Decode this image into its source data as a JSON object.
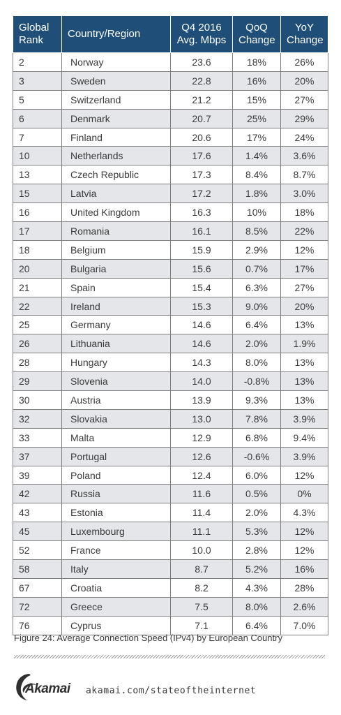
{
  "table": {
    "headers": {
      "rank": "Global Rank",
      "country": "Country/Region",
      "speed": "Q4 2016 Avg. Mbps",
      "qoq": "QoQ Change",
      "yoy": "YoY Change"
    },
    "rows": [
      {
        "rank": "2",
        "country": "Norway",
        "speed": "23.6",
        "qoq": "18%",
        "yoy": "26%"
      },
      {
        "rank": "3",
        "country": "Sweden",
        "speed": "22.8",
        "qoq": "16%",
        "yoy": "20%"
      },
      {
        "rank": "5",
        "country": "Switzerland",
        "speed": "21.2",
        "qoq": "15%",
        "yoy": "27%"
      },
      {
        "rank": "6",
        "country": "Denmark",
        "speed": "20.7",
        "qoq": "25%",
        "yoy": "29%"
      },
      {
        "rank": "7",
        "country": "Finland",
        "speed": "20.6",
        "qoq": "17%",
        "yoy": "24%"
      },
      {
        "rank": "10",
        "country": "Netherlands",
        "speed": "17.6",
        "qoq": "1.4%",
        "yoy": "3.6%"
      },
      {
        "rank": "13",
        "country": "Czech Republic",
        "speed": "17.3",
        "qoq": "8.4%",
        "yoy": "8.7%"
      },
      {
        "rank": "15",
        "country": "Latvia",
        "speed": "17.2",
        "qoq": "1.8%",
        "yoy": "3.0%"
      },
      {
        "rank": "16",
        "country": "United Kingdom",
        "speed": "16.3",
        "qoq": "10%",
        "yoy": "18%"
      },
      {
        "rank": "17",
        "country": "Romania",
        "speed": "16.1",
        "qoq": "8.5%",
        "yoy": "22%"
      },
      {
        "rank": "18",
        "country": "Belgium",
        "speed": "15.9",
        "qoq": "2.9%",
        "yoy": "12%"
      },
      {
        "rank": "20",
        "country": "Bulgaria",
        "speed": "15.6",
        "qoq": "0.7%",
        "yoy": "17%"
      },
      {
        "rank": "21",
        "country": "Spain",
        "speed": "15.4",
        "qoq": "6.3%",
        "yoy": "27%"
      },
      {
        "rank": "22",
        "country": "Ireland",
        "speed": "15.3",
        "qoq": "9.0%",
        "yoy": "20%"
      },
      {
        "rank": "25",
        "country": "Germany",
        "speed": "14.6",
        "qoq": "6.4%",
        "yoy": "13%"
      },
      {
        "rank": "26",
        "country": "Lithuania",
        "speed": "14.6",
        "qoq": "2.0%",
        "yoy": "1.9%"
      },
      {
        "rank": "28",
        "country": "Hungary",
        "speed": "14.3",
        "qoq": "8.0%",
        "yoy": "13%"
      },
      {
        "rank": "29",
        "country": "Slovenia",
        "speed": "14.0",
        "qoq": "-0.8%",
        "yoy": "13%"
      },
      {
        "rank": "30",
        "country": "Austria",
        "speed": "13.9",
        "qoq": "9.3%",
        "yoy": "13%"
      },
      {
        "rank": "32",
        "country": "Slovakia",
        "speed": "13.0",
        "qoq": "7.8%",
        "yoy": "3.9%"
      },
      {
        "rank": "33",
        "country": "Malta",
        "speed": "12.9",
        "qoq": "6.8%",
        "yoy": "9.4%"
      },
      {
        "rank": "37",
        "country": "Portugal",
        "speed": "12.6",
        "qoq": "-0.6%",
        "yoy": "3.9%"
      },
      {
        "rank": "39",
        "country": "Poland",
        "speed": "12.4",
        "qoq": "6.0%",
        "yoy": "12%"
      },
      {
        "rank": "42",
        "country": "Russia",
        "speed": "11.6",
        "qoq": "0.5%",
        "yoy": "0%"
      },
      {
        "rank": "43",
        "country": "Estonia",
        "speed": "11.4",
        "qoq": "2.0%",
        "yoy": "4.3%"
      },
      {
        "rank": "45",
        "country": "Luxembourg",
        "speed": "11.1",
        "qoq": "5.3%",
        "yoy": "12%"
      },
      {
        "rank": "52",
        "country": "France",
        "speed": "10.0",
        "qoq": "2.8%",
        "yoy": "12%"
      },
      {
        "rank": "58",
        "country": "Italy",
        "speed": "8.7",
        "qoq": "5.2%",
        "yoy": "16%"
      },
      {
        "rank": "67",
        "country": "Croatia",
        "speed": "8.2",
        "qoq": "4.3%",
        "yoy": "28%"
      },
      {
        "rank": "72",
        "country": "Greece",
        "speed": "7.5",
        "qoq": "8.0%",
        "yoy": "2.6%"
      },
      {
        "rank": "76",
        "country": "Cyprus",
        "speed": "7.1",
        "qoq": "6.4%",
        "yoy": "7.0%"
      }
    ]
  },
  "caption": "Figure 24: Average Connection Speed (IPv4) by European Country",
  "footer": {
    "logo_text": "Akamai",
    "url": "akamai.com/stateoftheinternet"
  },
  "colors": {
    "header_bg": "#1f4e79",
    "stripe_bg": "#e4e6ea",
    "border": "#7f7f7f"
  }
}
